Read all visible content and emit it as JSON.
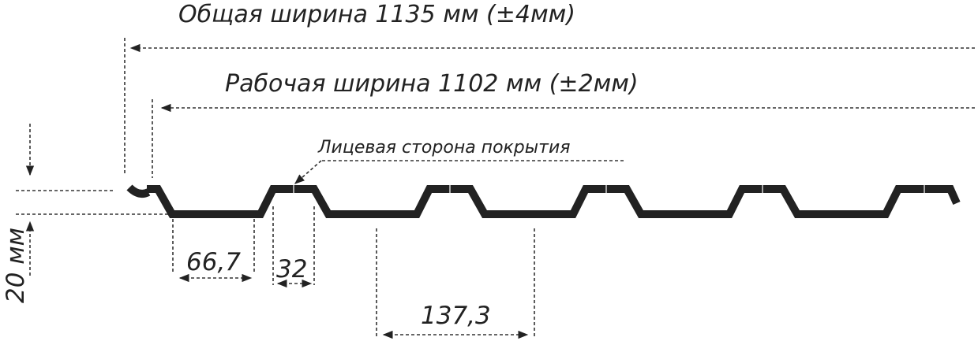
{
  "labels": {
    "total_width": "Общая ширина 1135 мм  (±4мм)",
    "working_width": "Рабочая ширина 1102 мм  (±2мм)",
    "face_side": "Лицевая сторона покрытия",
    "height": "20 мм",
    "bottom_width": "66,7",
    "top_width": "32",
    "pitch": "137,3"
  },
  "colors": {
    "profile": "#222222",
    "lines": "#333333",
    "text": "#222222"
  }
}
